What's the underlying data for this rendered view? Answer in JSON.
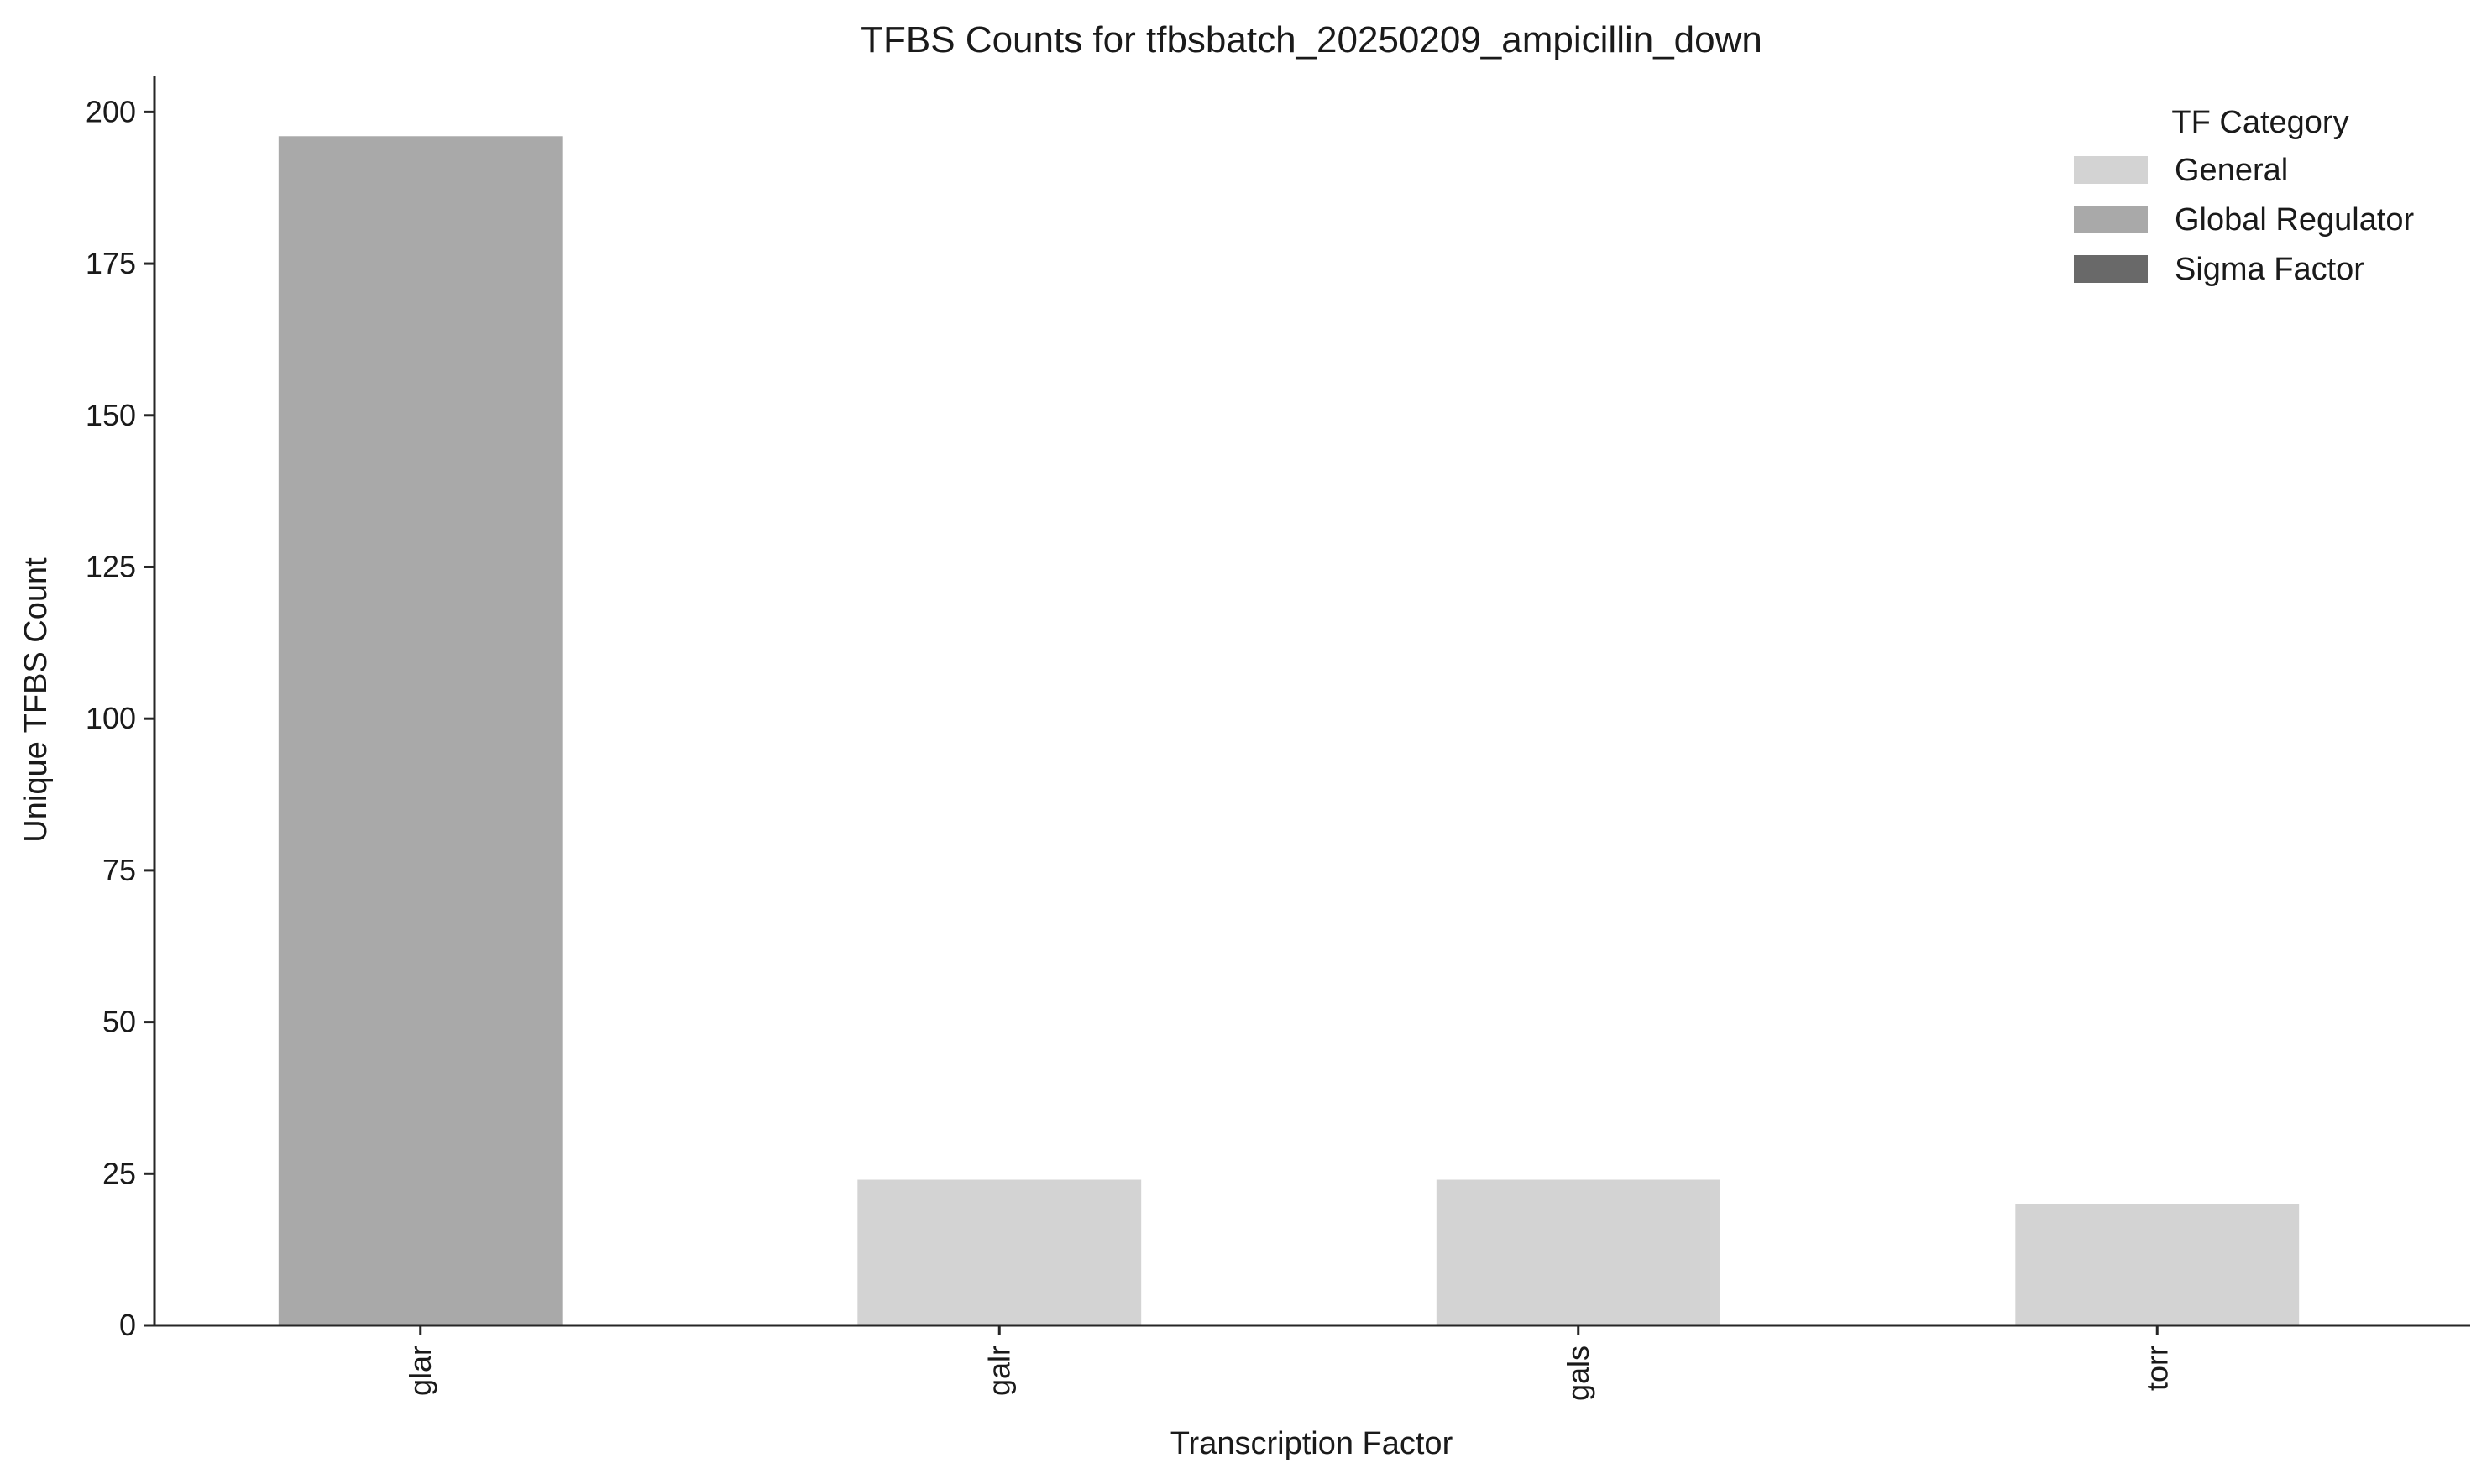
{
  "chart_data": {
    "type": "bar",
    "title": "TFBS Counts for tfbsbatch_20250209_ampicillin_down",
    "xlabel": "Transcription Factor",
    "ylabel": "Unique TFBS Count",
    "ylim": [
      0,
      206
    ],
    "yticks": [
      0,
      25,
      50,
      75,
      100,
      125,
      150,
      175,
      200
    ],
    "categories": [
      "glar",
      "galr",
      "gals",
      "torr"
    ],
    "values": [
      196,
      24,
      24,
      20
    ],
    "bar_category": [
      "Global Regulator",
      "General",
      "General",
      "General"
    ],
    "grid": false,
    "legend": {
      "title": "TF Category",
      "placement": "top-right",
      "entries": [
        {
          "label": "General",
          "color": "#d3d3d3"
        },
        {
          "label": "Global Regulator",
          "color": "#a9a9a9"
        },
        {
          "label": "Sigma Factor",
          "color": "#696969"
        }
      ]
    }
  }
}
